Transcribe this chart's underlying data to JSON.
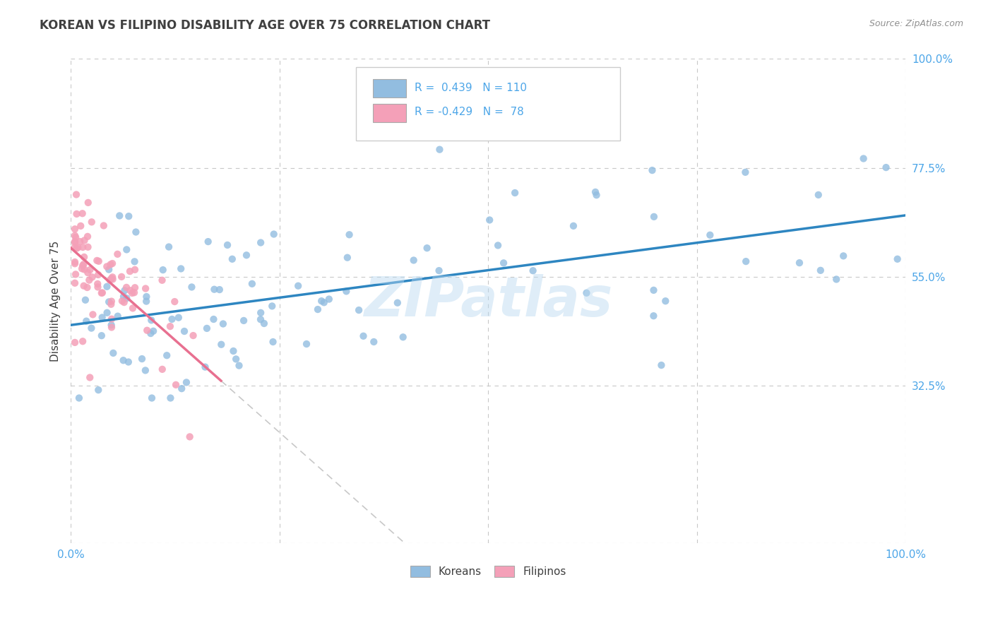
{
  "title": "KOREAN VS FILIPINO DISABILITY AGE OVER 75 CORRELATION CHART",
  "source_text": "Source: ZipAtlas.com",
  "ylabel": "Disability Age Over 75",
  "legend_korean": {
    "R": 0.439,
    "N": 110
  },
  "legend_filipino": {
    "R": -0.429,
    "N": 78
  },
  "korean_scatter_color": "#92bde0",
  "filipino_scatter_color": "#f4a0b8",
  "korean_line_color": "#2e86c1",
  "filipino_line_color": "#e87090",
  "dashed_line_color": "#c8c8c8",
  "watermark": "ZIPatlas",
  "xlim": [
    0.0,
    1.0
  ],
  "ylim": [
    0.0,
    1.0
  ],
  "x_ticks": [
    0.0,
    0.25,
    0.5,
    0.75,
    1.0
  ],
  "y_ticks": [
    0.0,
    0.325,
    0.55,
    0.775,
    1.0
  ],
  "x_tick_labels": [
    "0.0%",
    "",
    "",
    "",
    "100.0%"
  ],
  "y_tick_labels_right": [
    "",
    "32.5%",
    "55.0%",
    "77.5%",
    "100.0%"
  ],
  "background_color": "#ffffff",
  "grid_color": "#c8c8c8",
  "title_color": "#404040",
  "tick_color": "#4da6e8",
  "legend_text_color": "#4da6e8",
  "source_color": "#909090"
}
